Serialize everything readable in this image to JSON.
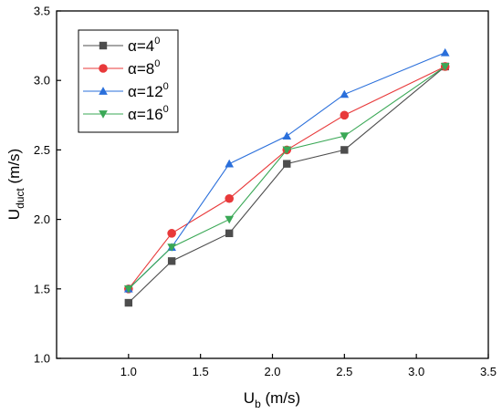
{
  "chart_data": {
    "type": "line",
    "xlabel": {
      "main": "U",
      "sub": "b",
      "unit": " (m/s)"
    },
    "ylabel": {
      "main": "U",
      "sub": "duct",
      "unit": " (m/s)"
    },
    "xlim": [
      0.5,
      3.5
    ],
    "ylim": [
      1.0,
      3.5
    ],
    "xticks": [
      1.0,
      1.5,
      2.0,
      2.5,
      3.0,
      3.5
    ],
    "yticks": [
      1.0,
      1.5,
      2.0,
      2.5,
      3.0,
      3.5
    ],
    "xtick_labels": [
      "1.0",
      "1.5",
      "2.0",
      "2.5",
      "3.0",
      "3.5"
    ],
    "ytick_labels": [
      "1.0",
      "1.5",
      "2.0",
      "2.5",
      "3.0",
      "3.5"
    ],
    "grid": false,
    "legend_position": "top-left",
    "x": [
      1.0,
      1.3,
      1.7,
      2.1,
      2.5,
      3.2
    ],
    "series": [
      {
        "name": "α=4",
        "sup": "0",
        "marker": "square",
        "color": "#4d4d4d",
        "values": [
          1.4,
          1.7,
          1.9,
          2.4,
          2.5,
          3.1
        ]
      },
      {
        "name": "α=8",
        "sup": "0",
        "marker": "circle",
        "color": "#e8393a",
        "values": [
          1.5,
          1.9,
          2.15,
          2.5,
          2.75,
          3.1
        ]
      },
      {
        "name": "α=12",
        "sup": "0",
        "marker": "triangle-up",
        "color": "#2a6fdb",
        "values": [
          1.5,
          1.8,
          2.4,
          2.6,
          2.9,
          3.2
        ]
      },
      {
        "name": "α=16",
        "sup": "0",
        "marker": "triangle-down",
        "color": "#3aa856",
        "values": [
          1.5,
          1.8,
          2.0,
          2.5,
          2.6,
          3.1
        ]
      }
    ]
  }
}
